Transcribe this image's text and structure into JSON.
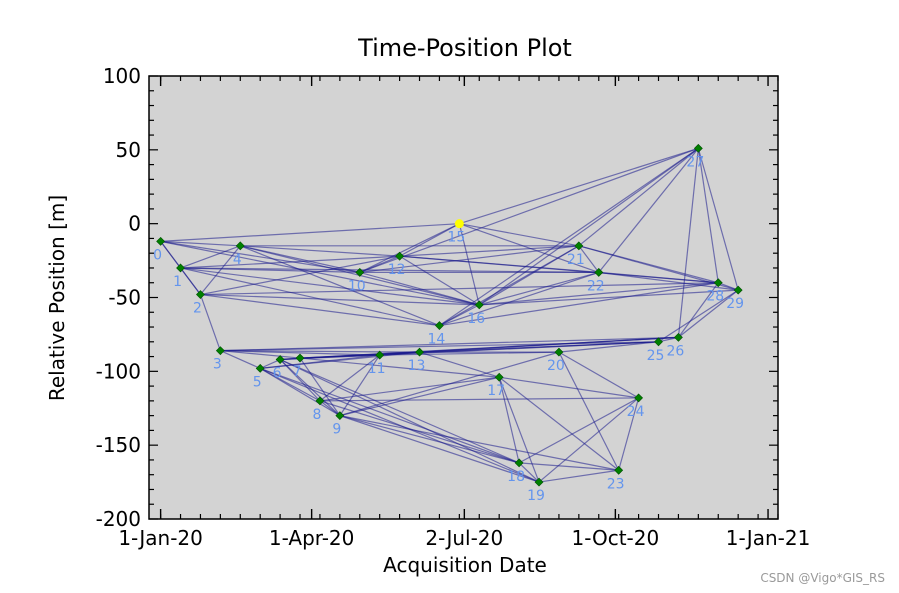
{
  "chart_data": {
    "type": "scatter",
    "title": "Time-Position Plot",
    "xlabel": "Acquisition Date",
    "ylabel": "Relative Position [m]",
    "x_axis": "date",
    "xlim": [
      "2019-12-25",
      "2021-01-07"
    ],
    "ylim": [
      -200,
      100
    ],
    "x_ticks": [
      {
        "date": "2020-01-01",
        "label": "1-Jan-20"
      },
      {
        "date": "2020-04-01",
        "label": "1-Apr-20"
      },
      {
        "date": "2020-07-02",
        "label": "2-Jul-20"
      },
      {
        "date": "2020-10-01",
        "label": "1-Oct-20"
      },
      {
        "date": "2021-01-01",
        "label": "1-Jan-21"
      }
    ],
    "y_ticks": [
      100,
      50,
      0,
      -50,
      -100,
      -150,
      -200
    ],
    "background": "#d3d3d3",
    "point_color": "#008000",
    "reference_color": "#ffff00",
    "edge_color": "#1a1a8c",
    "label_color": "#6495ed",
    "points": [
      {
        "id": "0",
        "date": "2020-01-01",
        "y": -12
      },
      {
        "id": "1",
        "date": "2020-01-13",
        "y": -30
      },
      {
        "id": "2",
        "date": "2020-01-25",
        "y": -48
      },
      {
        "id": "3",
        "date": "2020-02-06",
        "y": -86
      },
      {
        "id": "4",
        "date": "2020-02-18",
        "y": -15
      },
      {
        "id": "5",
        "date": "2020-03-01",
        "y": -98
      },
      {
        "id": "6",
        "date": "2020-03-13",
        "y": -92
      },
      {
        "id": "7",
        "date": "2020-03-25",
        "y": -91
      },
      {
        "id": "8",
        "date": "2020-04-06",
        "y": -120
      },
      {
        "id": "9",
        "date": "2020-04-18",
        "y": -130
      },
      {
        "id": "10",
        "date": "2020-04-30",
        "y": -33
      },
      {
        "id": "11",
        "date": "2020-05-12",
        "y": -89
      },
      {
        "id": "12",
        "date": "2020-05-24",
        "y": -22
      },
      {
        "id": "13",
        "date": "2020-06-05",
        "y": -87
      },
      {
        "id": "14",
        "date": "2020-06-17",
        "y": -69
      },
      {
        "id": "15",
        "date": "2020-06-29",
        "y": 0,
        "reference": true
      },
      {
        "id": "16",
        "date": "2020-07-11",
        "y": -55
      },
      {
        "id": "17",
        "date": "2020-07-23",
        "y": -104
      },
      {
        "id": "18",
        "date": "2020-08-04",
        "y": -162
      },
      {
        "id": "19",
        "date": "2020-08-16",
        "y": -175
      },
      {
        "id": "20",
        "date": "2020-08-28",
        "y": -87
      },
      {
        "id": "21",
        "date": "2020-09-09",
        "y": -15
      },
      {
        "id": "22",
        "date": "2020-09-21",
        "y": -33
      },
      {
        "id": "23",
        "date": "2020-10-03",
        "y": -167
      },
      {
        "id": "24",
        "date": "2020-10-15",
        "y": -118
      },
      {
        "id": "25",
        "date": "2020-10-27",
        "y": -80
      },
      {
        "id": "26",
        "date": "2020-11-08",
        "y": -77
      },
      {
        "id": "27",
        "date": "2020-11-20",
        "y": 51
      },
      {
        "id": "28",
        "date": "2020-12-02",
        "y": -40
      },
      {
        "id": "29",
        "date": "2020-12-14",
        "y": -45
      }
    ],
    "edges": [
      [
        0,
        1
      ],
      [
        0,
        2
      ],
      [
        0,
        4
      ],
      [
        0,
        10
      ],
      [
        0,
        15
      ],
      [
        0,
        16
      ],
      [
        1,
        2
      ],
      [
        1,
        4
      ],
      [
        1,
        10
      ],
      [
        1,
        12
      ],
      [
        1,
        14
      ],
      [
        1,
        16
      ],
      [
        1,
        22
      ],
      [
        2,
        3
      ],
      [
        2,
        4
      ],
      [
        2,
        12
      ],
      [
        2,
        14
      ],
      [
        2,
        16
      ],
      [
        2,
        28
      ],
      [
        3,
        5
      ],
      [
        3,
        7
      ],
      [
        3,
        11
      ],
      [
        3,
        13
      ],
      [
        3,
        25
      ],
      [
        3,
        26
      ],
      [
        4,
        10
      ],
      [
        4,
        12
      ],
      [
        4,
        14
      ],
      [
        4,
        16
      ],
      [
        4,
        21
      ],
      [
        5,
        6
      ],
      [
        5,
        8
      ],
      [
        5,
        9
      ],
      [
        5,
        11
      ],
      [
        5,
        13
      ],
      [
        5,
        18
      ],
      [
        5,
        19
      ],
      [
        6,
        7
      ],
      [
        6,
        8
      ],
      [
        6,
        9
      ],
      [
        6,
        11
      ],
      [
        6,
        13
      ],
      [
        6,
        18
      ],
      [
        6,
        19
      ],
      [
        6,
        26
      ],
      [
        7,
        9
      ],
      [
        7,
        11
      ],
      [
        7,
        13
      ],
      [
        7,
        17
      ],
      [
        7,
        25
      ],
      [
        7,
        26
      ],
      [
        8,
        9
      ],
      [
        8,
        11
      ],
      [
        8,
        17
      ],
      [
        8,
        18
      ],
      [
        8,
        24
      ],
      [
        9,
        11
      ],
      [
        9,
        17
      ],
      [
        9,
        18
      ],
      [
        9,
        19
      ],
      [
        9,
        20
      ],
      [
        9,
        23
      ],
      [
        10,
        12
      ],
      [
        10,
        15
      ],
      [
        10,
        16
      ],
      [
        10,
        21
      ],
      [
        10,
        22
      ],
      [
        10,
        27
      ],
      [
        11,
        13
      ],
      [
        11,
        20
      ],
      [
        11,
        25
      ],
      [
        12,
        15
      ],
      [
        12,
        16
      ],
      [
        12,
        21
      ],
      [
        12,
        22
      ],
      [
        12,
        28
      ],
      [
        13,
        17
      ],
      [
        13,
        20
      ],
      [
        13,
        25
      ],
      [
        13,
        26
      ],
      [
        14,
        16
      ],
      [
        14,
        21
      ],
      [
        14,
        22
      ],
      [
        14,
        27
      ],
      [
        14,
        28
      ],
      [
        15,
        16
      ],
      [
        15,
        21
      ],
      [
        15,
        22
      ],
      [
        15,
        27
      ],
      [
        16,
        21
      ],
      [
        16,
        22
      ],
      [
        16,
        27
      ],
      [
        16,
        28
      ],
      [
        16,
        29
      ],
      [
        17,
        18
      ],
      [
        17,
        19
      ],
      [
        17,
        23
      ],
      [
        17,
        24
      ],
      [
        18,
        19
      ],
      [
        18,
        23
      ],
      [
        18,
        24
      ],
      [
        19,
        23
      ],
      [
        19,
        24
      ],
      [
        20,
        23
      ],
      [
        20,
        24
      ],
      [
        20,
        25
      ],
      [
        21,
        22
      ],
      [
        21,
        27
      ],
      [
        21,
        28
      ],
      [
        21,
        29
      ],
      [
        22,
        27
      ],
      [
        22,
        28
      ],
      [
        22,
        29
      ],
      [
        23,
        24
      ],
      [
        25,
        26
      ],
      [
        25,
        29
      ],
      [
        26,
        28
      ],
      [
        26,
        29
      ],
      [
        26,
        27
      ],
      [
        27,
        28
      ],
      [
        27,
        29
      ],
      [
        28,
        29
      ]
    ]
  },
  "watermark": "CSDN @Vigo*GIS_RS"
}
